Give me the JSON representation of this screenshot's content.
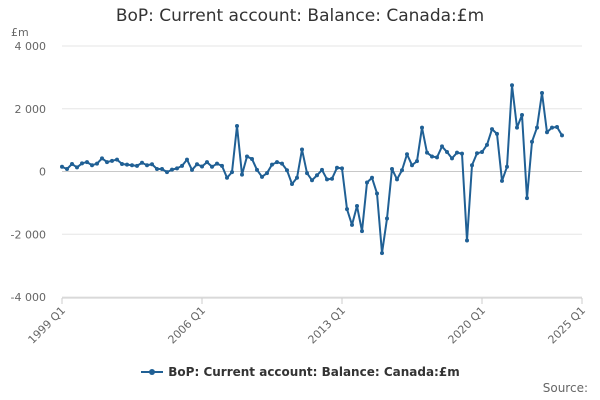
{
  "chart_data": {
    "type": "line",
    "title": "BoP: Current account: Balance: Canada:£m",
    "ylabel": "£m",
    "xlabel": "",
    "source_label": "Source:",
    "legend_position": "bottom",
    "grid": true,
    "ylim": [
      -4000,
      4000
    ],
    "y_ticks": [
      -4000,
      -2000,
      0,
      2000,
      4000
    ],
    "y_tick_labels": [
      "-4 000",
      "-2 000",
      "0",
      "2 000",
      "4 000"
    ],
    "x_ticks": [
      "1999 Q1",
      "2006 Q1",
      "2013 Q1",
      "2020 Q1",
      "2025 Q1"
    ],
    "x_range": [
      "1999 Q1",
      "2025 Q1"
    ],
    "line_color": "#206095",
    "series": [
      {
        "name": "BoP: Current account: Balance: Canada:£m",
        "start": "1999 Q1",
        "frequency": "quarterly",
        "values": [
          150,
          80,
          240,
          130,
          260,
          300,
          200,
          250,
          420,
          300,
          340,
          380,
          240,
          220,
          200,
          180,
          280,
          200,
          230,
          80,
          80,
          -20,
          60,
          100,
          180,
          380,
          50,
          230,
          160,
          300,
          150,
          250,
          180,
          -200,
          -20,
          1450,
          -100,
          480,
          400,
          50,
          -170,
          -50,
          220,
          300,
          250,
          40,
          -400,
          -200,
          700,
          -50,
          -280,
          -120,
          50,
          -250,
          -230,
          120,
          100,
          -1200,
          -1700,
          -1100,
          -1900,
          -350,
          -200,
          -700,
          -2600,
          -1500,
          80,
          -250,
          40,
          550,
          200,
          330,
          1400,
          600,
          480,
          450,
          800,
          620,
          420,
          600,
          570,
          -2200,
          200,
          580,
          620,
          850,
          1350,
          1200,
          -300,
          150,
          2750,
          1400,
          1800,
          -850,
          950,
          1400,
          2500,
          1250,
          1400,
          1420,
          1150
        ]
      }
    ]
  }
}
